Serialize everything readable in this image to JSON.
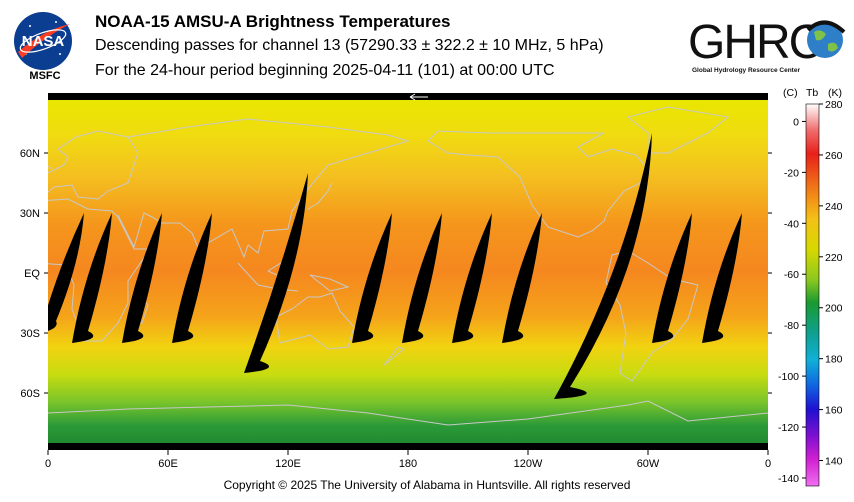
{
  "header": {
    "title": "NOAA-15 AMSU-A Brightness Temperatures",
    "subtitle": "Descending passes for channel 13 (57290.33 ± 322.2 ± 10 MHz, 5 hPa)",
    "period": "For the 24-hour period beginning 2025-04-11 (101) at 00:00 UTC"
  },
  "logos": {
    "nasa_text": "NASA",
    "msfc_text": "MSFC",
    "ghrc_text": "GHRC",
    "ghrc_caption": "Global Hydrology Resource Center"
  },
  "map": {
    "lat_labels": [
      "60N",
      "30N",
      "EQ",
      "30S",
      "60S"
    ],
    "lat_values": [
      60,
      30,
      0,
      -30,
      -60
    ],
    "lon_labels": [
      "0",
      "60E",
      "120E",
      "180",
      "120W",
      "60W",
      "0"
    ],
    "lon_values": [
      0,
      60,
      120,
      180,
      240,
      300,
      360
    ]
  },
  "colorbar": {
    "unit_c": "(C)",
    "unit_tb": "Tb",
    "unit_k": "(K)",
    "celsius_labels": [
      "0",
      "-20",
      "-40",
      "-60",
      "-80",
      "-100",
      "-120",
      "-140"
    ],
    "celsius_values": [
      0,
      -20,
      -40,
      -60,
      -80,
      -100,
      -120,
      -140
    ],
    "kelvin_labels": [
      "280",
      "260",
      "240",
      "220",
      "200",
      "180",
      "160",
      "140"
    ],
    "kelvin_values": [
      280,
      260,
      240,
      220,
      200,
      180,
      160,
      140
    ],
    "k_min": 130,
    "k_max": 280
  },
  "colors": {
    "tropic": "#f5891f",
    "mid": "#f4d21a",
    "high": "#dfe300",
    "green": "#20a040",
    "gap": "#000000",
    "coast": "#c8c8c8"
  },
  "footer": {
    "copyright": "Copyright © 2025 The University of Alabama in Huntsville.  All rights reserved"
  }
}
